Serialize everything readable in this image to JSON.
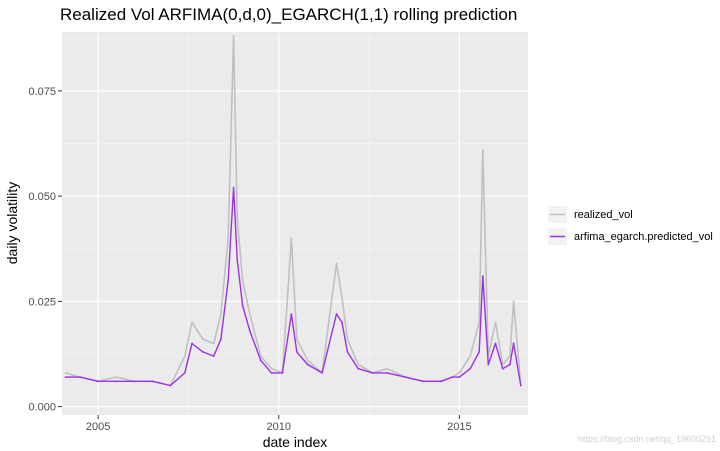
{
  "chart_data": {
    "type": "line",
    "title": "Realized Vol ARFIMA(0,d,0)_EGARCH(1,1) rolling prediction",
    "xlabel": "date index",
    "ylabel": "daily volatility",
    "xlim": [
      2004.0,
      2016.9
    ],
    "ylim": [
      -0.002,
      0.089
    ],
    "x_ticks": [
      2005,
      2010,
      2015
    ],
    "x_tick_labels": [
      "2005",
      "2010",
      "2015"
    ],
    "y_ticks": [
      0.0,
      0.025,
      0.05,
      0.075
    ],
    "y_tick_labels": [
      "0.000",
      "0.025",
      "0.050",
      "0.075"
    ],
    "grid": true,
    "legend_position": "right",
    "series": [
      {
        "name": "realized_vol",
        "color": "#c0c0c0",
        "x": [
          2004.1,
          2004.5,
          2005.0,
          2005.5,
          2006.0,
          2006.5,
          2007.0,
          2007.4,
          2007.6,
          2007.9,
          2008.2,
          2008.4,
          2008.6,
          2008.75,
          2008.85,
          2009.0,
          2009.2,
          2009.5,
          2009.8,
          2010.1,
          2010.35,
          2010.5,
          2010.8,
          2011.2,
          2011.6,
          2011.75,
          2011.9,
          2012.2,
          2012.6,
          2013.0,
          2013.5,
          2014.0,
          2014.5,
          2014.8,
          2015.0,
          2015.3,
          2015.55,
          2015.65,
          2015.8,
          2016.0,
          2016.2,
          2016.4,
          2016.5,
          2016.7
        ],
        "values": [
          0.008,
          0.007,
          0.006,
          0.007,
          0.006,
          0.006,
          0.005,
          0.012,
          0.02,
          0.016,
          0.015,
          0.022,
          0.04,
          0.088,
          0.045,
          0.03,
          0.022,
          0.012,
          0.009,
          0.008,
          0.04,
          0.016,
          0.011,
          0.008,
          0.034,
          0.026,
          0.016,
          0.01,
          0.008,
          0.009,
          0.007,
          0.006,
          0.006,
          0.007,
          0.008,
          0.012,
          0.02,
          0.061,
          0.012,
          0.02,
          0.01,
          0.012,
          0.025,
          0.005
        ]
      },
      {
        "name": "arfima_egarch.predicted_vol",
        "color": "#9b30e6",
        "x": [
          2004.1,
          2004.5,
          2005.0,
          2005.5,
          2006.0,
          2006.5,
          2007.0,
          2007.4,
          2007.6,
          2007.9,
          2008.2,
          2008.4,
          2008.6,
          2008.75,
          2008.85,
          2009.0,
          2009.2,
          2009.5,
          2009.8,
          2010.1,
          2010.35,
          2010.5,
          2010.8,
          2011.2,
          2011.6,
          2011.75,
          2011.9,
          2012.2,
          2012.6,
          2013.0,
          2013.5,
          2014.0,
          2014.5,
          2014.8,
          2015.0,
          2015.3,
          2015.55,
          2015.65,
          2015.8,
          2016.0,
          2016.2,
          2016.4,
          2016.5,
          2016.7
        ],
        "values": [
          0.007,
          0.007,
          0.006,
          0.006,
          0.006,
          0.006,
          0.005,
          0.008,
          0.015,
          0.013,
          0.012,
          0.016,
          0.03,
          0.052,
          0.035,
          0.024,
          0.018,
          0.011,
          0.008,
          0.008,
          0.022,
          0.013,
          0.01,
          0.008,
          0.022,
          0.02,
          0.013,
          0.009,
          0.008,
          0.008,
          0.007,
          0.006,
          0.006,
          0.007,
          0.007,
          0.009,
          0.013,
          0.031,
          0.01,
          0.015,
          0.009,
          0.01,
          0.015,
          0.005
        ]
      }
    ]
  },
  "watermark": "https://blog.csdn.net/qq_19600291"
}
